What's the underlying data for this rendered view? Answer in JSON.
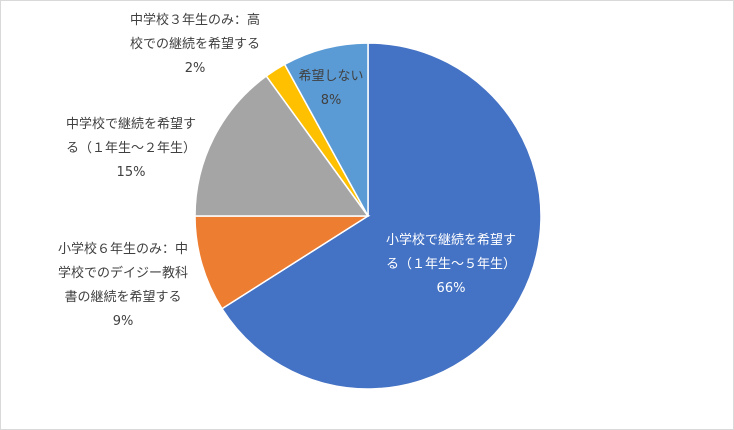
{
  "chart_data": {
    "type": "pie",
    "categories": [
      "小学校で継続を希望する（１年生～５年生）",
      "小学校６年生のみ：中学校でのデイジー教科書の継続を希望する",
      "中学校で継続を希望する（１年生～２年生）",
      "中学校３年生のみ：高校での継続を希望する",
      "希望しない"
    ],
    "values": [
      66,
      9,
      15,
      2,
      8
    ],
    "value_labels": [
      "66%",
      "9%",
      "15%",
      "2%",
      "8%"
    ],
    "colors": [
      "#4472c4",
      "#ed7d31",
      "#a5a5a5",
      "#ffc000",
      "#5b9bd5"
    ]
  }
}
